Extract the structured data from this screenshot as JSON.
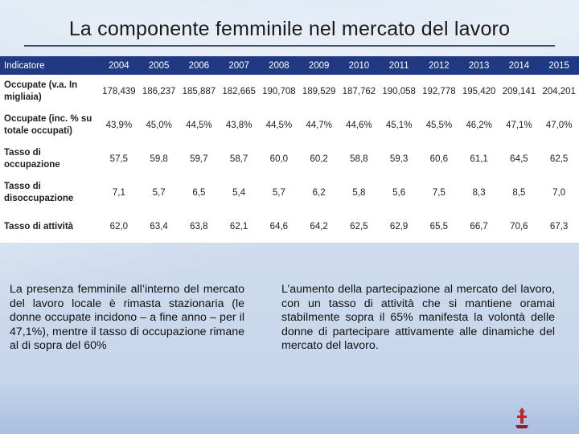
{
  "title": "La componente femminile nel mercato del lavoro",
  "table": {
    "headers": [
      "Indicatore",
      "2004",
      "2005",
      "2006",
      "2007",
      "2008",
      "2009",
      "2010",
      "2011",
      "2012",
      "2013",
      "2014",
      "2015"
    ],
    "rows": [
      {
        "label_lines": [
          "Occupate (v.a. In",
          "migliaia)"
        ],
        "values": [
          "178,439",
          "186,237",
          "185,887",
          "182,665",
          "190,708",
          "189,529",
          "187,762",
          "190,058",
          "192,778",
          "195,420",
          "209,141",
          "204,201"
        ]
      },
      {
        "label_lines": [
          "Occupate (inc. % su",
          "totale occupati)"
        ],
        "values": [
          "43,9%",
          "45,0%",
          "44,5%",
          "43,8%",
          "44,5%",
          "44,7%",
          "44,6%",
          "45,1%",
          "45,5%",
          "46,2%",
          "47,1%",
          "47,0%"
        ]
      },
      {
        "label_lines": [
          "Tasso di",
          "occupazione"
        ],
        "values": [
          "57,5",
          "59,8",
          "59,7",
          "58,7",
          "60,0",
          "60,2",
          "58,8",
          "59,3",
          "60,6",
          "61,1",
          "64,5",
          "62,5"
        ]
      },
      {
        "label_lines": [
          "Tasso di",
          "disoccupazione"
        ],
        "values": [
          "7,1",
          "5,7",
          "6,5",
          "5,4",
          "5,7",
          "6,2",
          "5,8",
          "5,6",
          "7,5",
          "8,3",
          "8,5",
          "7,0"
        ]
      },
      {
        "label_lines": [
          "Tasso di attività",
          ""
        ],
        "values": [
          "62,0",
          "63,4",
          "63,8",
          "62,1",
          "64,6",
          "64,2",
          "62,5",
          "62,9",
          "65,5",
          "66,7",
          "70,6",
          "67,3"
        ]
      }
    ]
  },
  "text_left": "La presenza femminile all’interno del mercato del lavoro locale è rimasta stazionaria (le donne occupate incidono – a fine anno – per il 47,1%), mentre il tasso di occupazione rimane al di sopra del 60%",
  "text_right": "L’aumento della partecipazione al mercato del lavoro, con un tasso di attività che si mantiene oramai stabilmente sopra il 65% manifesta la volontà delle donne di partecipare attivamente alle dinamiche del mercato del lavoro.",
  "logo_text": "",
  "colors": {
    "header_bg": "#1f3a82",
    "title_rule": "#3d4f73",
    "logo_red": "#c0282d"
  },
  "icons": {
    "logo": "institution-logo-icon"
  }
}
